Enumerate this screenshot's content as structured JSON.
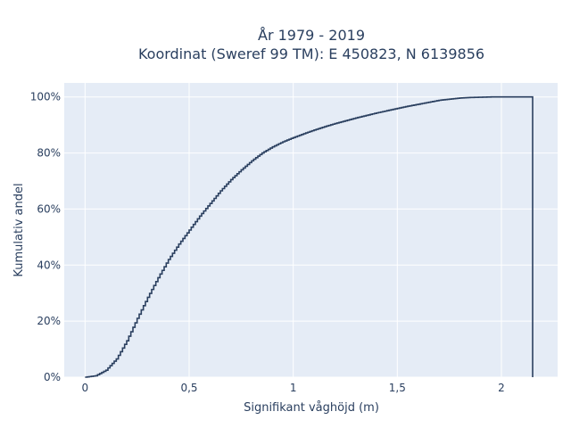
{
  "chart_data": {
    "type": "line",
    "title": "År 1979 - 2019",
    "subtitle": "Koordinat (Sweref 99 TM): E 450823, N 6139856",
    "xlabel": "Signifikant våghöjd (m)",
    "ylabel": "Kumulativ andel",
    "xlim": [
      -0.1,
      2.27
    ],
    "ylim": [
      0,
      1.05
    ],
    "x_ticks": [
      {
        "value": 0,
        "label": "0"
      },
      {
        "value": 0.5,
        "label": "0,5"
      },
      {
        "value": 1,
        "label": "1"
      },
      {
        "value": 1.5,
        "label": "1,5"
      },
      {
        "value": 2,
        "label": "2"
      }
    ],
    "y_ticks": [
      {
        "value": 0,
        "label": "0%"
      },
      {
        "value": 0.2,
        "label": "20%"
      },
      {
        "value": 0.4,
        "label": "40%"
      },
      {
        "value": 0.6,
        "label": "60%"
      },
      {
        "value": 0.8,
        "label": "80%"
      },
      {
        "value": 1,
        "label": "100%"
      }
    ],
    "grid": true,
    "legend": "none",
    "step_width": 0.01,
    "drop_at_end": true,
    "series": [
      {
        "color": "#2a3f5f",
        "x": [
          0,
          0.05,
          0.1,
          0.15,
          0.2,
          0.25,
          0.3,
          0.35,
          0.4,
          0.45,
          0.5,
          0.55,
          0.6,
          0.65,
          0.7,
          0.75,
          0.8,
          0.85,
          0.9,
          0.95,
          1.0,
          1.05,
          1.1,
          1.15,
          1.2,
          1.25,
          1.3,
          1.35,
          1.4,
          1.45,
          1.5,
          1.55,
          1.6,
          1.65,
          1.7,
          1.75,
          1.8,
          1.85,
          1.9,
          1.95,
          2.0,
          2.05,
          2.1,
          2.15
        ],
        "y": [
          0.0,
          0.005,
          0.025,
          0.065,
          0.13,
          0.21,
          0.285,
          0.355,
          0.42,
          0.475,
          0.525,
          0.575,
          0.62,
          0.665,
          0.705,
          0.74,
          0.772,
          0.8,
          0.822,
          0.84,
          0.855,
          0.869,
          0.882,
          0.894,
          0.905,
          0.915,
          0.925,
          0.934,
          0.943,
          0.951,
          0.959,
          0.967,
          0.974,
          0.981,
          0.988,
          0.992,
          0.996,
          0.998,
          0.999,
          1.0,
          1.0,
          1.0,
          1.0,
          1.0
        ]
      }
    ]
  }
}
